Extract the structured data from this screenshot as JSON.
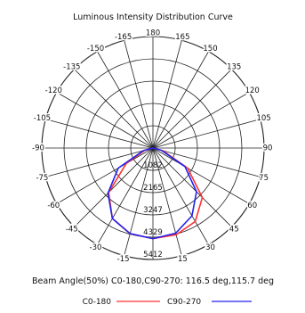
{
  "chart_data": {
    "type": "polar",
    "title": "Luminous Intensity Distribution Curve",
    "angle_labels": [
      {
        "deg": 180,
        "text": "180"
      },
      {
        "deg": 165,
        "text": "165"
      },
      {
        "deg": 150,
        "text": "150"
      },
      {
        "deg": 135,
        "text": "135"
      },
      {
        "deg": 120,
        "text": "120"
      },
      {
        "deg": 105,
        "text": "105"
      },
      {
        "deg": 90,
        "text": "90"
      },
      {
        "deg": 75,
        "text": "75"
      },
      {
        "deg": 60,
        "text": "60"
      },
      {
        "deg": 45,
        "text": "45"
      },
      {
        "deg": 30,
        "text": "30"
      },
      {
        "deg": 15,
        "text": "15"
      },
      {
        "deg": -165,
        "text": "-165"
      },
      {
        "deg": -150,
        "text": "-150"
      },
      {
        "deg": -135,
        "text": "-135"
      },
      {
        "deg": -120,
        "text": "-120"
      },
      {
        "deg": -105,
        "text": "-105"
      },
      {
        "deg": -90,
        "text": "-90"
      },
      {
        "deg": -75,
        "text": "-75"
      },
      {
        "deg": -60,
        "text": "-60"
      },
      {
        "deg": -45,
        "text": "-45"
      },
      {
        "deg": -30,
        "text": "-30"
      },
      {
        "deg": -15,
        "text": "-15"
      }
    ],
    "radial_ticks": [
      1082,
      2165,
      3247,
      4329,
      5412
    ],
    "radial_max": 5412,
    "series": [
      {
        "name": "C0-180",
        "color": "#ff3333",
        "points": [
          {
            "angle": -90,
            "value": 0
          },
          {
            "angle": -75,
            "value": 400
          },
          {
            "angle": -60,
            "value": 1500
          },
          {
            "angle": -45,
            "value": 3050
          },
          {
            "angle": -30,
            "value": 3950
          },
          {
            "angle": -15,
            "value": 4310
          },
          {
            "angle": 0,
            "value": 4400
          },
          {
            "angle": 15,
            "value": 4360
          },
          {
            "angle": 30,
            "value": 4120
          },
          {
            "angle": 45,
            "value": 3400
          },
          {
            "angle": 60,
            "value": 1950
          },
          {
            "angle": 75,
            "value": 500
          },
          {
            "angle": 90,
            "value": 0
          }
        ]
      },
      {
        "name": "C90-270",
        "color": "#2222ee",
        "points": [
          {
            "angle": -90,
            "value": 0
          },
          {
            "angle": -75,
            "value": 480
          },
          {
            "angle": -60,
            "value": 1950
          },
          {
            "angle": -45,
            "value": 3100
          },
          {
            "angle": -30,
            "value": 3950
          },
          {
            "angle": -15,
            "value": 4300
          },
          {
            "angle": 0,
            "value": 4400
          },
          {
            "angle": 15,
            "value": 4280
          },
          {
            "angle": 30,
            "value": 3800
          },
          {
            "angle": 45,
            "value": 3000
          },
          {
            "angle": 60,
            "value": 1800
          },
          {
            "angle": 75,
            "value": 420
          },
          {
            "angle": 90,
            "value": 0
          }
        ]
      }
    ],
    "beam_angle_text": "Beam Angle(50%) C0-180,C90-270: 116.5 deg,115.7 deg",
    "legend": [
      {
        "label": "C0-180",
        "color": "#ff3333"
      },
      {
        "label": "C90-270",
        "color": "#2222ee"
      }
    ],
    "grid": true,
    "legend_position": "bottom"
  }
}
